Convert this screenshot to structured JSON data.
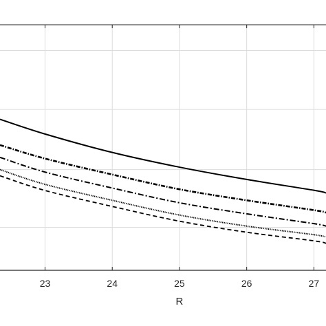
{
  "chart_data": {
    "type": "line",
    "title": "",
    "xlabel": "R",
    "ylabel": "",
    "xlim": [
      22.33,
      27.18
    ],
    "ylim": [
      0,
      1
    ],
    "grid": true,
    "x_ticks": [
      {
        "value": 23,
        "label": "23"
      },
      {
        "value": 24,
        "label": "24"
      },
      {
        "value": 25,
        "label": "25"
      },
      {
        "value": 26,
        "label": "26"
      },
      {
        "value": 27,
        "label": "27"
      }
    ],
    "y_gridlines": [
      0.175,
      0.41,
      0.655,
      0.895
    ],
    "series": [
      {
        "style": "solid",
        "x": [
          22.33,
          23,
          24,
          25,
          26,
          27,
          27.18
        ],
        "y": [
          0.615,
          0.555,
          0.48,
          0.42,
          0.37,
          0.326,
          0.315
        ]
      },
      {
        "style": "dashdot-dense",
        "x": [
          22.33,
          23,
          24,
          25,
          26,
          27,
          27.18
        ],
        "y": [
          0.51,
          0.455,
          0.39,
          0.33,
          0.285,
          0.245,
          0.235
        ]
      },
      {
        "style": "dashdot",
        "x": [
          22.33,
          23,
          24,
          25,
          26,
          27,
          27.18
        ],
        "y": [
          0.46,
          0.4,
          0.335,
          0.275,
          0.23,
          0.19,
          0.18
        ]
      },
      {
        "style": "dotted",
        "x": [
          22.33,
          23,
          24,
          25,
          26,
          27,
          27.18
        ],
        "y": [
          0.41,
          0.35,
          0.285,
          0.225,
          0.18,
          0.145,
          0.135
        ]
      },
      {
        "style": "dashed",
        "x": [
          22.33,
          23,
          24,
          25,
          26,
          27,
          27.18
        ],
        "y": [
          0.385,
          0.325,
          0.26,
          0.2,
          0.155,
          0.12,
          0.11
        ]
      }
    ],
    "colors": {
      "line": "#000000",
      "grid": "#dcdcdc",
      "axis": "#262626"
    }
  }
}
